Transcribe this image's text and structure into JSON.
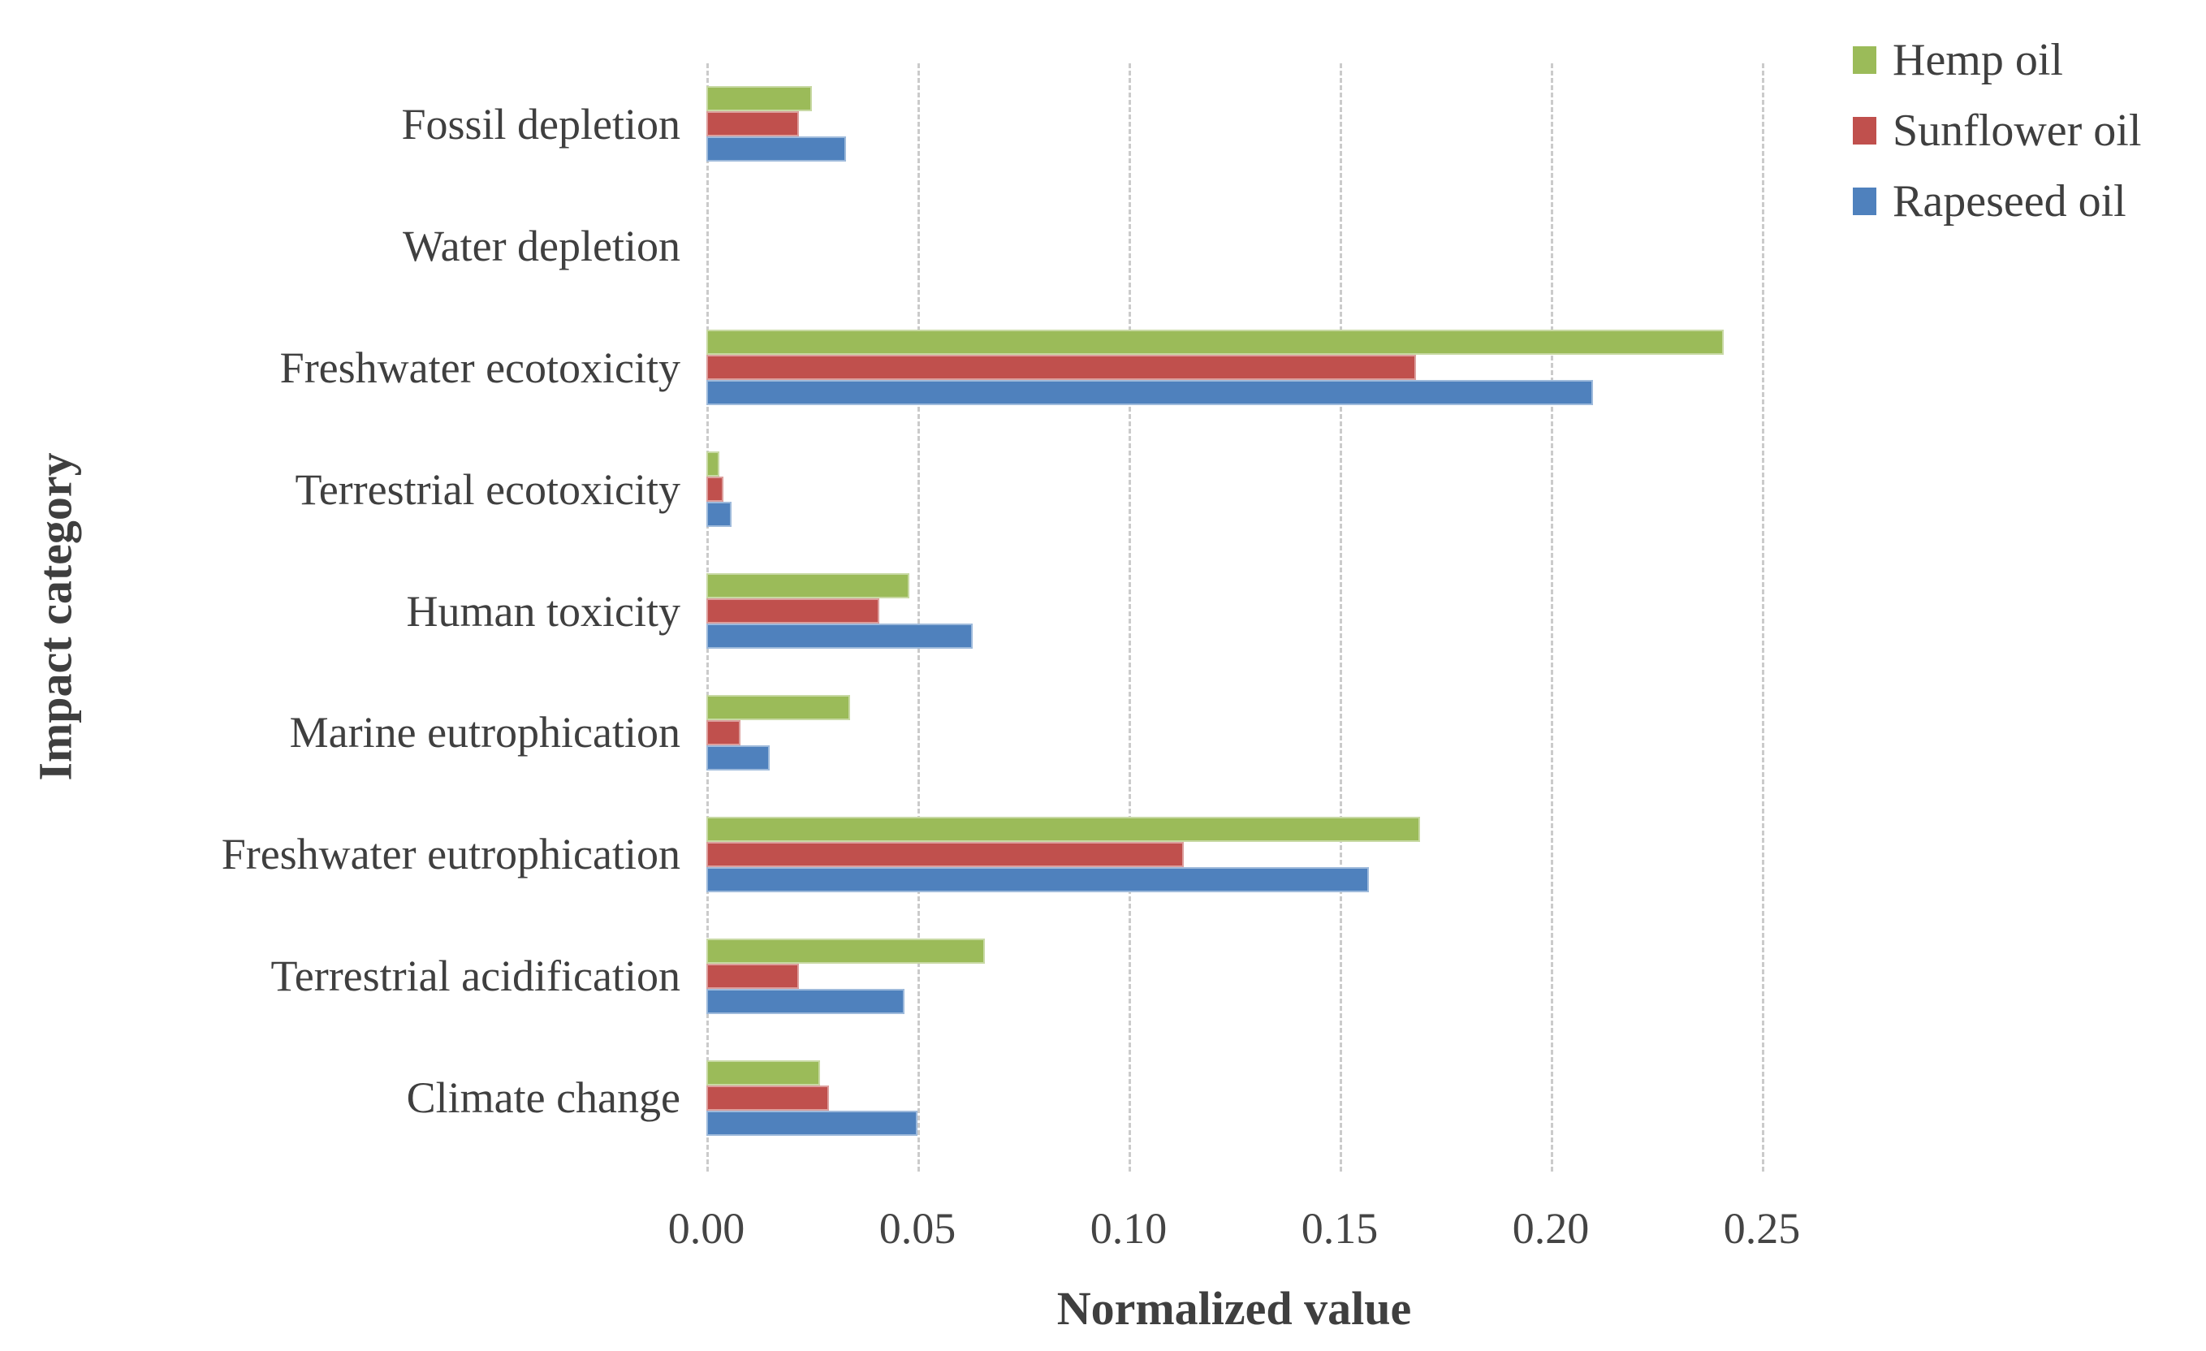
{
  "chart_data": {
    "type": "bar",
    "orientation": "horizontal",
    "title": "",
    "xlabel": "Normalized value",
    "ylabel": "Impact category",
    "xlim": [
      0,
      0.25
    ],
    "xticks": [
      "0.00",
      "0.05",
      "0.10",
      "0.15",
      "0.20",
      "0.25"
    ],
    "grid": "vertical-dashed",
    "legend_position": "top-right",
    "categories": [
      "Fossil depletion",
      "Water depletion",
      "Freshwater ecotoxicity",
      "Terrestrial ecotoxicity",
      "Human toxicity",
      "Marine eutrophication",
      "Freshwater eutrophication",
      "Terrestrial acidification",
      "Climate change"
    ],
    "series": [
      {
        "name": "Hemp oil",
        "color": "#9BBB59",
        "values": [
          0.025,
          0,
          0.241,
          0.003,
          0.048,
          0.034,
          0.169,
          0.066,
          0.027
        ]
      },
      {
        "name": "Sunflower oil",
        "color": "#C0504D",
        "values": [
          0.022,
          0,
          0.168,
          0.004,
          0.041,
          0.008,
          0.113,
          0.022,
          0.029
        ]
      },
      {
        "name": "Rapeseed oil",
        "color": "#4F81BD",
        "values": [
          0.033,
          0,
          0.21,
          0.006,
          0.063,
          0.015,
          0.157,
          0.047,
          0.05
        ]
      }
    ]
  },
  "colors": {
    "gridline": "#CBCBCB",
    "text": "#3F3F3F"
  }
}
